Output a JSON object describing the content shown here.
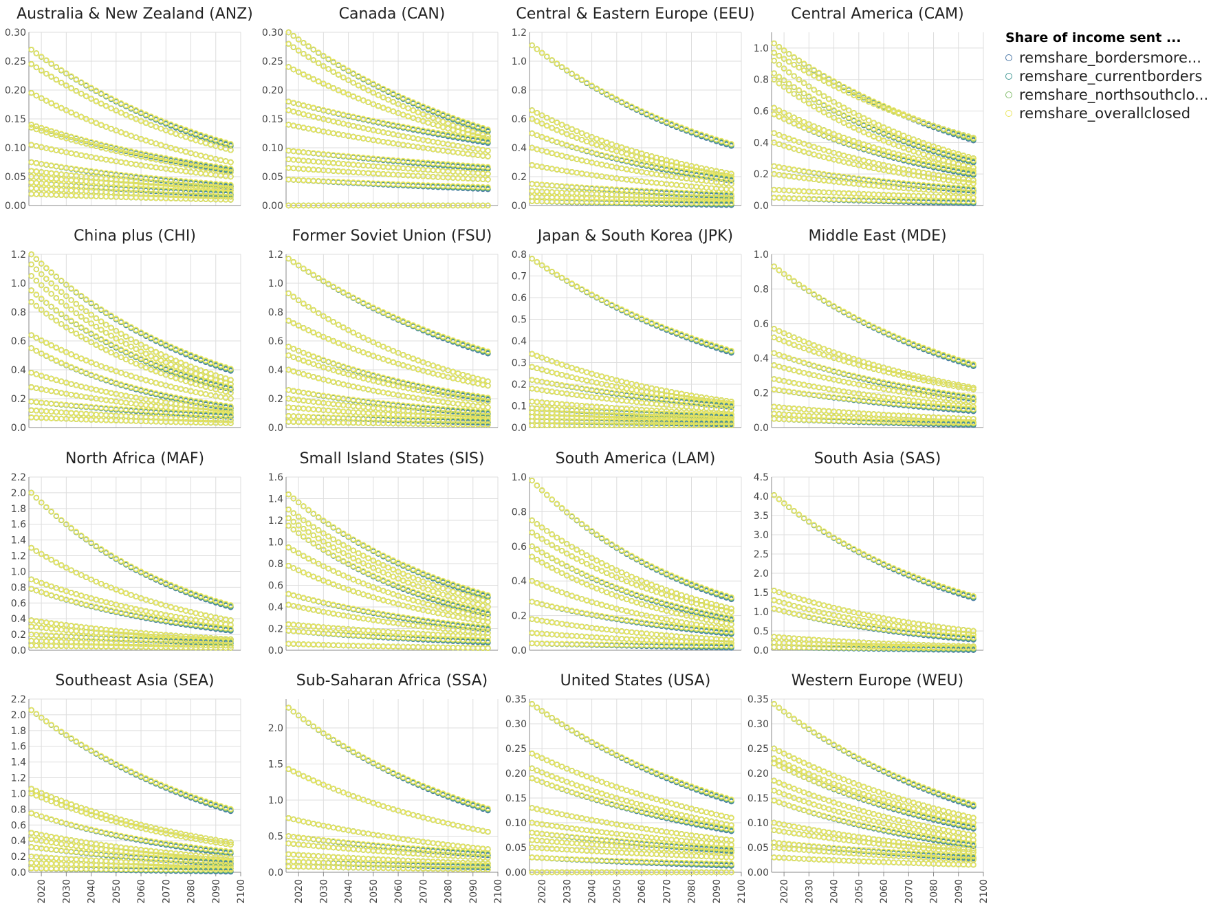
{
  "chart_data": {
    "type": "scatter",
    "legend": {
      "title": "Share of income sent ...",
      "placement": "top-right",
      "items": [
        {
          "label": "remshare_bordersmore...",
          "color": "#4c78a8"
        },
        {
          "label": "remshare_currentborders",
          "color": "#439894"
        },
        {
          "label": "remshare_northsouthclo...",
          "color": "#83bc6d"
        },
        {
          "label": "remshare_overallclosed",
          "color": "#eae55f"
        }
      ]
    },
    "x_ticks": [
      "2020",
      "2030",
      "2040",
      "2050",
      "2060",
      "2070",
      "2080",
      "2090",
      "2100"
    ],
    "x_range": [
      2015,
      2100
    ],
    "grid": true,
    "panels": [
      {
        "title": "Australia & New Zealand (ANZ)",
        "ylim": [
          0,
          0.3
        ],
        "y_ticks": [
          "0.00",
          "0.05",
          "0.10",
          "0.15",
          "0.20",
          "0.25",
          "0.30"
        ],
        "curves": [
          {
            "start": 0.27,
            "end": 0.105
          },
          {
            "start": 0.245,
            "end": 0.096
          },
          {
            "start": 0.195,
            "end": 0.075
          },
          {
            "start": 0.14,
            "end": 0.062
          },
          {
            "start": 0.135,
            "end": 0.058
          },
          {
            "start": 0.105,
            "end": 0.05
          },
          {
            "start": 0.075,
            "end": 0.034
          },
          {
            "start": 0.06,
            "end": 0.03
          },
          {
            "start": 0.05,
            "end": 0.026
          },
          {
            "start": 0.04,
            "end": 0.02
          },
          {
            "start": 0.03,
            "end": 0.015
          },
          {
            "start": 0.02,
            "end": 0.01
          }
        ]
      },
      {
        "title": "Canada (CAN)",
        "ylim": [
          0,
          0.3
        ],
        "y_ticks": [
          "0.00",
          "0.05",
          "0.10",
          "0.15",
          "0.20",
          "0.25",
          "0.30"
        ],
        "curves": [
          {
            "start": 0.3,
            "end": 0.13
          },
          {
            "start": 0.28,
            "end": 0.12
          },
          {
            "start": 0.24,
            "end": 0.115
          },
          {
            "start": 0.18,
            "end": 0.11
          },
          {
            "start": 0.165,
            "end": 0.095
          },
          {
            "start": 0.14,
            "end": 0.085
          },
          {
            "start": 0.095,
            "end": 0.065
          },
          {
            "start": 0.08,
            "end": 0.055
          },
          {
            "start": 0.065,
            "end": 0.045
          },
          {
            "start": 0.045,
            "end": 0.03
          },
          {
            "start": 0.0,
            "end": 0.0
          }
        ]
      },
      {
        "title": "Central & Eastern Europe (EEU)",
        "ylim": [
          0,
          1.2
        ],
        "y_ticks": [
          "0.0",
          "0.2",
          "0.4",
          "0.6",
          "0.8",
          "1.0",
          "1.2"
        ],
        "curves": [
          {
            "start": 1.11,
            "end": 0.42
          },
          {
            "start": 0.66,
            "end": 0.22
          },
          {
            "start": 0.6,
            "end": 0.2
          },
          {
            "start": 0.5,
            "end": 0.18
          },
          {
            "start": 0.4,
            "end": 0.15
          },
          {
            "start": 0.28,
            "end": 0.11
          },
          {
            "start": 0.15,
            "end": 0.07
          },
          {
            "start": 0.1,
            "end": 0.05
          },
          {
            "start": 0.06,
            "end": 0.03
          },
          {
            "start": 0.03,
            "end": 0.01
          }
        ]
      },
      {
        "title": "Central America (CAM)",
        "ylim": [
          0,
          1.1
        ],
        "y_ticks": [
          "0.0",
          "0.2",
          "0.4",
          "0.6",
          "0.8",
          "1.0"
        ],
        "curves": [
          {
            "start": 1.03,
            "end": 0.42
          },
          {
            "start": 0.97,
            "end": 0.43
          },
          {
            "start": 0.92,
            "end": 0.3
          },
          {
            "start": 0.84,
            "end": 0.28
          },
          {
            "start": 0.8,
            "end": 0.24
          },
          {
            "start": 0.62,
            "end": 0.22
          },
          {
            "start": 0.58,
            "end": 0.2
          },
          {
            "start": 0.46,
            "end": 0.16
          },
          {
            "start": 0.4,
            "end": 0.14
          },
          {
            "start": 0.25,
            "end": 0.1
          },
          {
            "start": 0.2,
            "end": 0.08
          },
          {
            "start": 0.1,
            "end": 0.05
          },
          {
            "start": 0.05,
            "end": 0.02
          }
        ]
      },
      {
        "title": "China plus (CHI)",
        "ylim": [
          0,
          1.2
        ],
        "y_ticks": [
          "0.0",
          "0.2",
          "0.4",
          "0.6",
          "0.8",
          "1.0",
          "1.2"
        ],
        "curves": [
          {
            "start": 1.2,
            "end": 0.4
          },
          {
            "start": 1.13,
            "end": 0.33
          },
          {
            "start": 1.05,
            "end": 0.3
          },
          {
            "start": 0.95,
            "end": 0.27
          },
          {
            "start": 0.87,
            "end": 0.24
          },
          {
            "start": 0.64,
            "end": 0.2
          },
          {
            "start": 0.55,
            "end": 0.14
          },
          {
            "start": 0.38,
            "end": 0.12
          },
          {
            "start": 0.28,
            "end": 0.1
          },
          {
            "start": 0.18,
            "end": 0.08
          },
          {
            "start": 0.12,
            "end": 0.05
          },
          {
            "start": 0.07,
            "end": 0.03
          }
        ]
      },
      {
        "title": "Former Soviet Union (FSU)",
        "ylim": [
          0,
          1.2
        ],
        "y_ticks": [
          "0.0",
          "0.2",
          "0.4",
          "0.6",
          "0.8",
          "1.0",
          "1.2"
        ],
        "curves": [
          {
            "start": 1.17,
            "end": 0.52
          },
          {
            "start": 0.93,
            "end": 0.32
          },
          {
            "start": 0.74,
            "end": 0.29
          },
          {
            "start": 0.56,
            "end": 0.2
          },
          {
            "start": 0.5,
            "end": 0.18
          },
          {
            "start": 0.4,
            "end": 0.14
          },
          {
            "start": 0.26,
            "end": 0.1
          },
          {
            "start": 0.2,
            "end": 0.08
          },
          {
            "start": 0.14,
            "end": 0.06
          },
          {
            "start": 0.08,
            "end": 0.04
          },
          {
            "start": 0.04,
            "end": 0.02
          }
        ]
      },
      {
        "title": "Japan & South Korea (JPK)",
        "ylim": [
          0,
          0.8
        ],
        "y_ticks": [
          "0.0",
          "0.1",
          "0.2",
          "0.3",
          "0.4",
          "0.5",
          "0.6",
          "0.7",
          "0.8"
        ],
        "curves": [
          {
            "start": 0.78,
            "end": 0.35
          },
          {
            "start": 0.34,
            "end": 0.12
          },
          {
            "start": 0.28,
            "end": 0.11
          },
          {
            "start": 0.22,
            "end": 0.1
          },
          {
            "start": 0.18,
            "end": 0.08
          },
          {
            "start": 0.12,
            "end": 0.06
          },
          {
            "start": 0.09,
            "end": 0.05
          },
          {
            "start": 0.07,
            "end": 0.04
          },
          {
            "start": 0.05,
            "end": 0.03
          },
          {
            "start": 0.03,
            "end": 0.02
          },
          {
            "start": 0.01,
            "end": 0.01
          }
        ]
      },
      {
        "title": "Middle East (MDE)",
        "ylim": [
          0,
          1.0
        ],
        "y_ticks": [
          "0.0",
          "0.2",
          "0.4",
          "0.6",
          "0.8",
          "1.0"
        ],
        "curves": [
          {
            "start": 0.93,
            "end": 0.36
          },
          {
            "start": 0.57,
            "end": 0.23
          },
          {
            "start": 0.52,
            "end": 0.22
          },
          {
            "start": 0.43,
            "end": 0.17
          },
          {
            "start": 0.36,
            "end": 0.15
          },
          {
            "start": 0.28,
            "end": 0.12
          },
          {
            "start": 0.22,
            "end": 0.1
          },
          {
            "start": 0.12,
            "end": 0.05
          },
          {
            "start": 0.08,
            "end": 0.03
          },
          {
            "start": 0.05,
            "end": 0.02
          }
        ]
      },
      {
        "title": "North Africa (MAF)",
        "ylim": [
          0,
          2.2
        ],
        "y_ticks": [
          "0.0",
          "0.2",
          "0.4",
          "0.6",
          "0.8",
          "1.0",
          "1.2",
          "1.4",
          "1.6",
          "1.8",
          "2.0",
          "2.2"
        ],
        "curves": [
          {
            "start": 2.0,
            "end": 0.56
          },
          {
            "start": 1.3,
            "end": 0.38
          },
          {
            "start": 0.9,
            "end": 0.32
          },
          {
            "start": 0.78,
            "end": 0.26
          },
          {
            "start": 0.38,
            "end": 0.14
          },
          {
            "start": 0.3,
            "end": 0.12
          },
          {
            "start": 0.2,
            "end": 0.1
          },
          {
            "start": 0.12,
            "end": 0.06
          },
          {
            "start": 0.06,
            "end": 0.03
          }
        ]
      },
      {
        "title": "Small Island States (SIS)",
        "ylim": [
          0,
          1.6
        ],
        "y_ticks": [
          "0.0",
          "0.2",
          "0.4",
          "0.6",
          "0.8",
          "1.0",
          "1.2",
          "1.4",
          "1.6"
        ],
        "curves": [
          {
            "start": 1.44,
            "end": 0.5
          },
          {
            "start": 1.3,
            "end": 0.45
          },
          {
            "start": 1.22,
            "end": 0.4
          },
          {
            "start": 1.15,
            "end": 0.34
          },
          {
            "start": 0.95,
            "end": 0.3
          },
          {
            "start": 0.78,
            "end": 0.26
          },
          {
            "start": 0.52,
            "end": 0.2
          },
          {
            "start": 0.42,
            "end": 0.16
          },
          {
            "start": 0.24,
            "end": 0.12
          },
          {
            "start": 0.18,
            "end": 0.08
          },
          {
            "start": 0.06,
            "end": 0.02
          }
        ]
      },
      {
        "title": "South America (LAM)",
        "ylim": [
          0,
          1.0
        ],
        "y_ticks": [
          "0.0",
          "0.2",
          "0.4",
          "0.6",
          "0.8",
          "1.0"
        ],
        "curves": [
          {
            "start": 0.98,
            "end": 0.3
          },
          {
            "start": 0.75,
            "end": 0.24
          },
          {
            "start": 0.68,
            "end": 0.22
          },
          {
            "start": 0.6,
            "end": 0.18
          },
          {
            "start": 0.54,
            "end": 0.15
          },
          {
            "start": 0.4,
            "end": 0.12
          },
          {
            "start": 0.28,
            "end": 0.1
          },
          {
            "start": 0.18,
            "end": 0.06
          },
          {
            "start": 0.1,
            "end": 0.04
          },
          {
            "start": 0.04,
            "end": 0.02
          }
        ]
      },
      {
        "title": "South Asia (SAS)",
        "ylim": [
          0,
          4.5
        ],
        "y_ticks": [
          "0.0",
          "0.5",
          "1.0",
          "1.5",
          "2.0",
          "2.5",
          "3.0",
          "3.5",
          "4.0",
          "4.5"
        ],
        "curves": [
          {
            "start": 4.03,
            "end": 1.38
          },
          {
            "start": 1.55,
            "end": 0.5
          },
          {
            "start": 1.3,
            "end": 0.4
          },
          {
            "start": 1.08,
            "end": 0.3
          },
          {
            "start": 0.35,
            "end": 0.1
          },
          {
            "start": 0.2,
            "end": 0.06
          },
          {
            "start": 0.08,
            "end": 0.03
          }
        ]
      },
      {
        "title": "Southeast Asia (SEA)",
        "ylim": [
          0,
          2.2
        ],
        "y_ticks": [
          "0.0",
          "0.2",
          "0.4",
          "0.6",
          "0.8",
          "1.0",
          "1.2",
          "1.4",
          "1.6",
          "1.8",
          "2.0",
          "2.2"
        ],
        "curves": [
          {
            "start": 2.06,
            "end": 0.79
          },
          {
            "start": 1.06,
            "end": 0.38
          },
          {
            "start": 1.0,
            "end": 0.35
          },
          {
            "start": 0.75,
            "end": 0.25
          },
          {
            "start": 0.5,
            "end": 0.18
          },
          {
            "start": 0.42,
            "end": 0.15
          },
          {
            "start": 0.32,
            "end": 0.12
          },
          {
            "start": 0.2,
            "end": 0.08
          },
          {
            "start": 0.12,
            "end": 0.05
          },
          {
            "start": 0.05,
            "end": 0.02
          }
        ]
      },
      {
        "title": "Sub-Saharan Africa (SSA)",
        "ylim": [
          0,
          2.4
        ],
        "y_ticks": [
          "0.0",
          "0.5",
          "1.0",
          "1.5",
          "2.0"
        ],
        "curves": [
          {
            "start": 2.28,
            "end": 0.87
          },
          {
            "start": 1.43,
            "end": 0.56
          },
          {
            "start": 0.75,
            "end": 0.32
          },
          {
            "start": 0.5,
            "end": 0.25
          },
          {
            "start": 0.4,
            "end": 0.2
          },
          {
            "start": 0.25,
            "end": 0.12
          },
          {
            "start": 0.15,
            "end": 0.08
          },
          {
            "start": 0.08,
            "end": 0.04
          }
        ]
      },
      {
        "title": "United States (USA)",
        "ylim": [
          0,
          0.35
        ],
        "y_ticks": [
          "0.00",
          "0.05",
          "0.10",
          "0.15",
          "0.20",
          "0.25",
          "0.30",
          "0.35"
        ],
        "curves": [
          {
            "start": 0.34,
            "end": 0.145
          },
          {
            "start": 0.24,
            "end": 0.11
          },
          {
            "start": 0.21,
            "end": 0.095
          },
          {
            "start": 0.19,
            "end": 0.085
          },
          {
            "start": 0.13,
            "end": 0.065
          },
          {
            "start": 0.1,
            "end": 0.055
          },
          {
            "start": 0.08,
            "end": 0.045
          },
          {
            "start": 0.065,
            "end": 0.04
          },
          {
            "start": 0.05,
            "end": 0.03
          },
          {
            "start": 0.03,
            "end": 0.015
          },
          {
            "start": 0.0,
            "end": 0.0
          }
        ]
      },
      {
        "title": "Western Europe (WEU)",
        "ylim": [
          0,
          0.35
        ],
        "y_ticks": [
          "0.00",
          "0.05",
          "0.10",
          "0.15",
          "0.20",
          "0.25",
          "0.30",
          "0.35"
        ],
        "curves": [
          {
            "start": 0.34,
            "end": 0.135
          },
          {
            "start": 0.25,
            "end": 0.11
          },
          {
            "start": 0.23,
            "end": 0.1
          },
          {
            "start": 0.22,
            "end": 0.09
          },
          {
            "start": 0.185,
            "end": 0.075
          },
          {
            "start": 0.165,
            "end": 0.065
          },
          {
            "start": 0.145,
            "end": 0.055
          },
          {
            "start": 0.1,
            "end": 0.045
          },
          {
            "start": 0.085,
            "end": 0.04
          },
          {
            "start": 0.06,
            "end": 0.03
          },
          {
            "start": 0.05,
            "end": 0.025
          },
          {
            "start": 0.03,
            "end": 0.015
          }
        ]
      }
    ]
  }
}
